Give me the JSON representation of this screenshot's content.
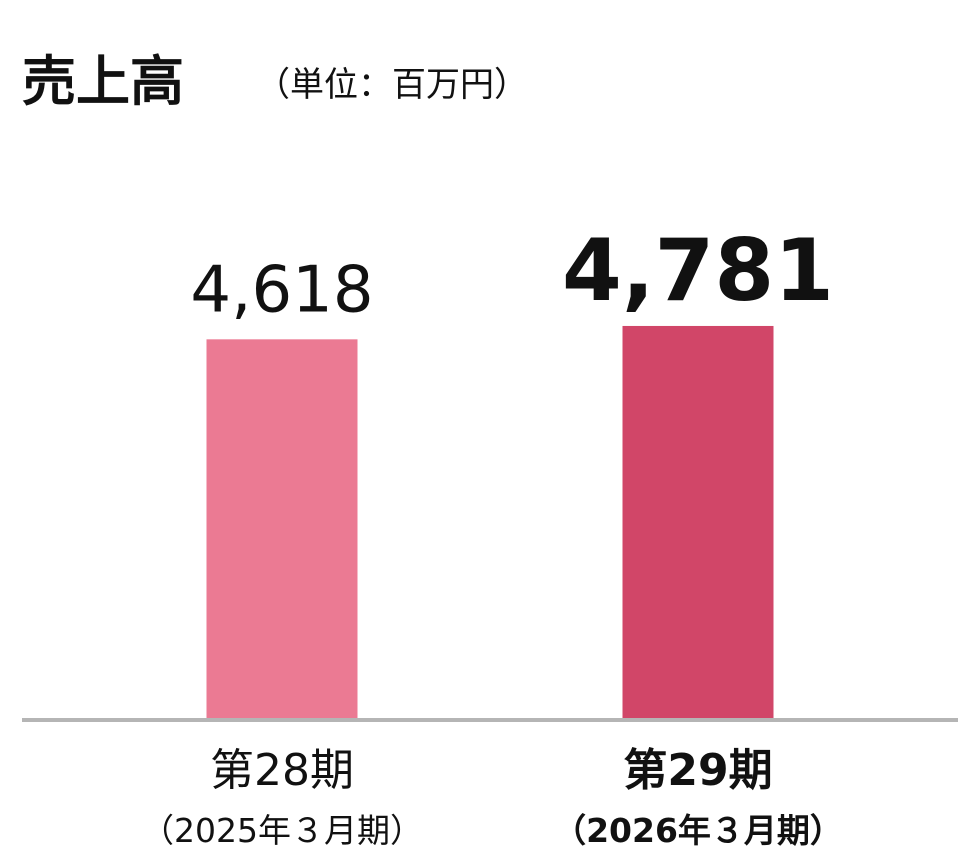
{
  "chart_data": {
    "type": "bar",
    "title": "売上高",
    "subtitle": "（単位：百万円）",
    "categories": [
      "第28期",
      "第29期"
    ],
    "category_subtitles": [
      "（2025年３月期）",
      "（2026年３月期）"
    ],
    "values": [
      4618,
      4781
    ],
    "value_labels": [
      "4,618",
      "4,781"
    ],
    "colors": [
      "#eb7a93",
      "#d14668"
    ],
    "highlight_index": 1
  }
}
